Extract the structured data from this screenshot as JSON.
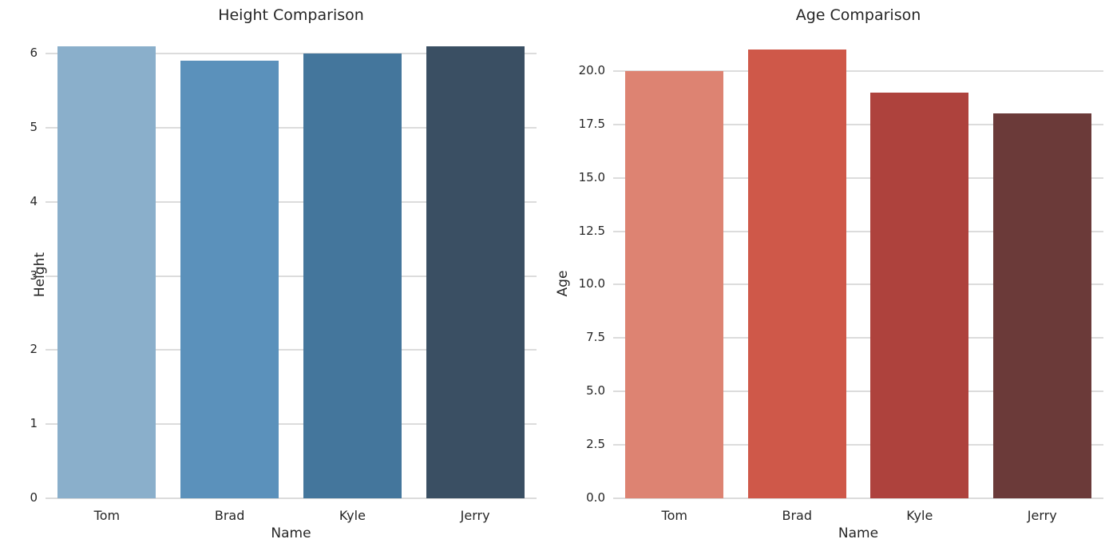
{
  "figure": {
    "background_color": "#ffffff",
    "text_color": "#262626",
    "grid_color": "#dcdcdc"
  },
  "chart_data": [
    {
      "type": "bar",
      "title": "Height Comparison",
      "xlabel": "Name",
      "ylabel": "Height",
      "categories": [
        "Tom",
        "Brad",
        "Kyle",
        "Jerry"
      ],
      "values": [
        6.1,
        5.9,
        6.0,
        6.1
      ],
      "bar_colors": [
        "#8aafcb",
        "#5b91bb",
        "#44769c",
        "#3a4f63"
      ],
      "ylim": [
        0,
        6.4
      ],
      "yticks": [
        0,
        1,
        2,
        3,
        4,
        5,
        6
      ],
      "ytick_labels": [
        "0",
        "1",
        "2",
        "3",
        "4",
        "5",
        "6"
      ],
      "grid": true,
      "legend": null
    },
    {
      "type": "bar",
      "title": "Age Comparison",
      "xlabel": "Name",
      "ylabel": "Age",
      "categories": [
        "Tom",
        "Brad",
        "Kyle",
        "Jerry"
      ],
      "values": [
        20,
        21,
        19,
        18
      ],
      "bar_colors": [
        "#dd8372",
        "#cf5849",
        "#ae423d",
        "#6b3a39"
      ],
      "ylim": [
        0,
        22.05
      ],
      "yticks": [
        0,
        2.5,
        5,
        7.5,
        10,
        12.5,
        15,
        17.5,
        20
      ],
      "ytick_labels": [
        "0.0",
        "2.5",
        "5.0",
        "7.5",
        "10.0",
        "12.5",
        "15.0",
        "17.5",
        "20.0"
      ],
      "grid": true,
      "legend": null
    }
  ]
}
